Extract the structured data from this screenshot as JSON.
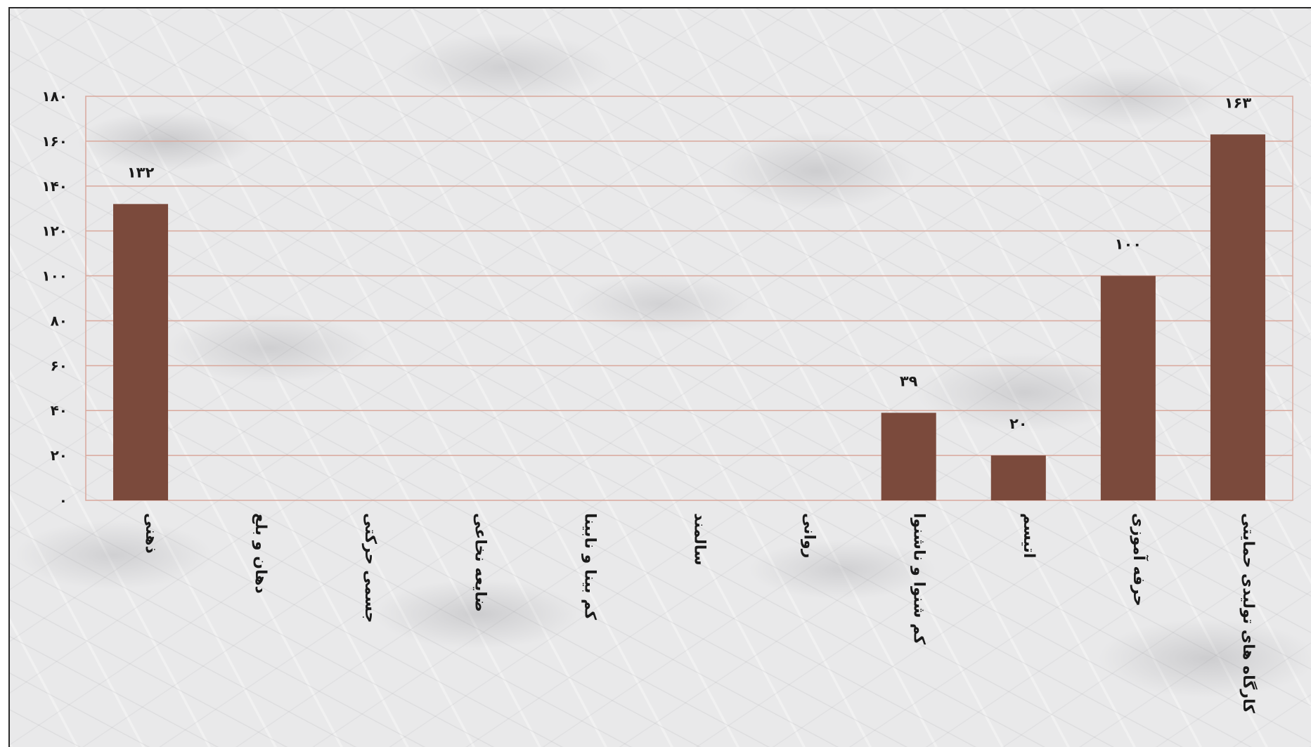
{
  "chart_data": {
    "type": "bar",
    "title": "",
    "xlabel": "",
    "ylabel": "",
    "categories": [
      "ذهنی",
      "دهان و بلع",
      "جسمی حرکتی",
      "ضایعه نخاعی",
      "کم بینا و نابینا",
      "سالمند",
      "روانی",
      "کم شنوا و ناشنوا",
      "اتیسم",
      "حرفه آموزی",
      "کارگاه های تولیدی حمایتی"
    ],
    "values": [
      132,
      0,
      0,
      0,
      0,
      0,
      0,
      39,
      20,
      100,
      163
    ],
    "data_labels": [
      "۱۳۲",
      "",
      "",
      "",
      "",
      "",
      "",
      "۳۹",
      "۲۰",
      "۱۰۰",
      "۱۶۳"
    ],
    "ylim": [
      0,
      180
    ],
    "y_ticks": [
      0,
      20,
      40,
      60,
      80,
      100,
      120,
      140,
      160,
      180
    ],
    "y_tick_labels": [
      "۰",
      "۲۰",
      "۴۰",
      "۶۰",
      "۸۰",
      "۱۰۰",
      "۱۲۰",
      "۱۴۰",
      "۱۶۰",
      "۱۸۰"
    ],
    "grid": true,
    "legend": "none",
    "colors": {
      "bar": "#7b4a3c",
      "grid": "#d9a89c",
      "text": "#1a1a1a"
    }
  }
}
